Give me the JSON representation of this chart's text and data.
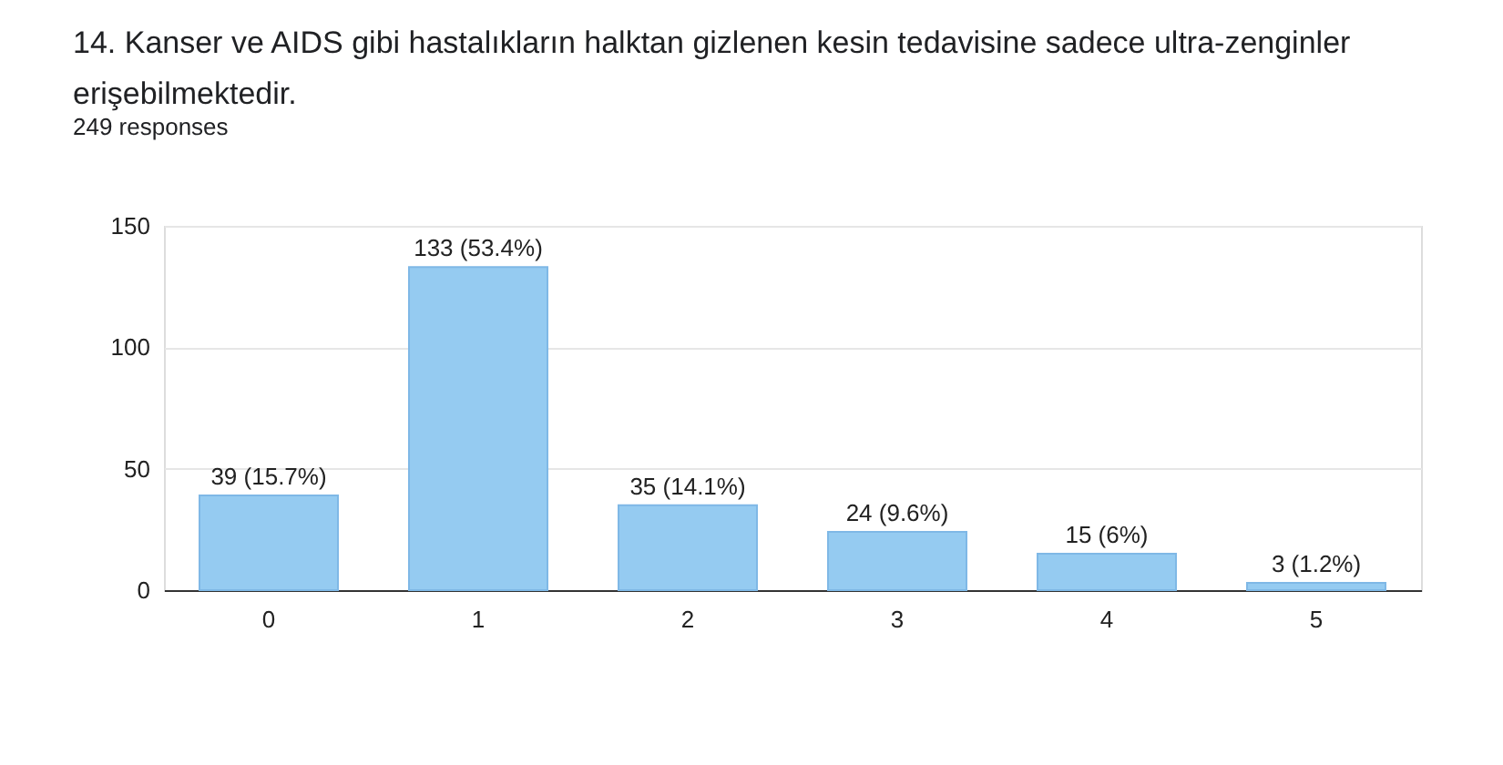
{
  "chart_data": {
    "type": "bar",
    "title": "14. Kanser ve AIDS gibi hastalıkların halktan gizlenen kesin tedavisine sadece ultra-zenginler erişebilmektedir.",
    "subtitle": "249 responses",
    "categories": [
      "0",
      "1",
      "2",
      "3",
      "4",
      "5"
    ],
    "values": [
      39,
      133,
      35,
      24,
      15,
      3
    ],
    "value_labels": [
      "39 (15.7%)",
      "133 (53.4%)",
      "35 (14.1%)",
      "24 (9.6%)",
      "15 (6%)",
      "3 (1.2%)"
    ],
    "color": "#95cbf1",
    "ylim": [
      0,
      150
    ],
    "yticks": [
      0,
      50,
      100,
      150
    ],
    "grid": "y"
  }
}
